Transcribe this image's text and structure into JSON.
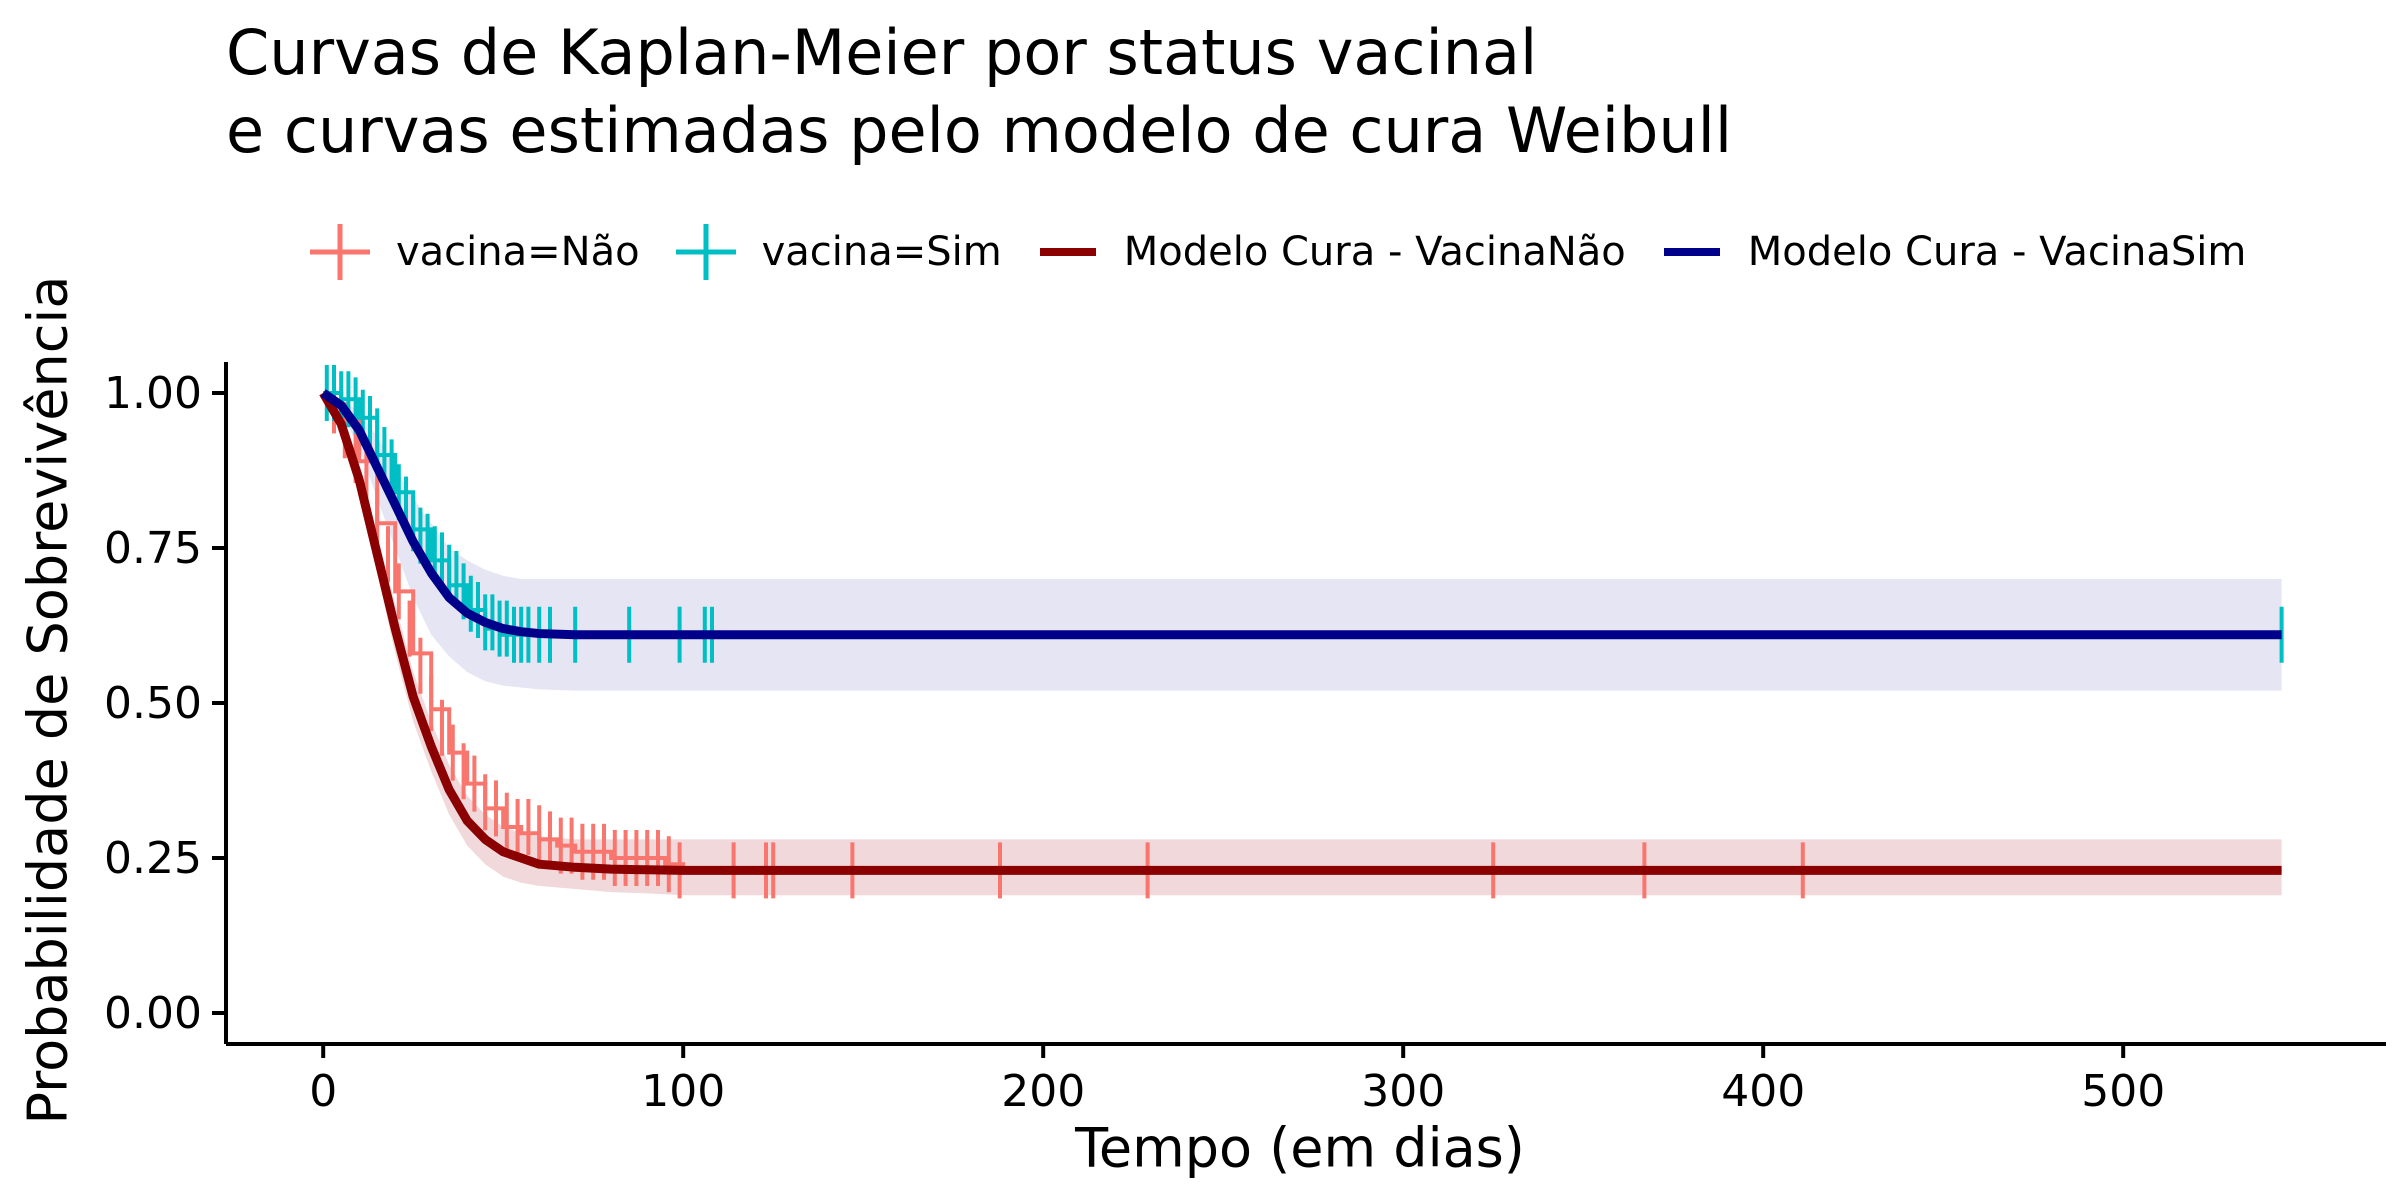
{
  "chart_data": {
    "type": "line",
    "title_lines": [
      "Curvas de Kaplan-Meier por status vacinal",
      "e curvas estimadas pelo modelo de cura Weibull"
    ],
    "xlabel": "Tempo (em dias)",
    "ylabel": "Probabilidade de Sobrevivência",
    "xlim": [
      -27,
      573
    ],
    "ylim": [
      -0.05,
      1.05
    ],
    "x_ticks": [
      0,
      100,
      200,
      300,
      400,
      500
    ],
    "y_ticks": [
      "0.00",
      "0.25",
      "0.50",
      "0.75",
      "1.00"
    ],
    "grid": false,
    "legend_position": "top",
    "legend": [
      {
        "label": "vacina=Não",
        "kind": "km",
        "color": "#F8766D"
      },
      {
        "label": "vacina=Sim",
        "kind": "km",
        "color": "#00BFC4"
      },
      {
        "label": "Modelo Cura - VacinaNão",
        "kind": "line",
        "color": "#8B0000"
      },
      {
        "label": "Modelo Cura - VacinaSim",
        "kind": "line",
        "color": "#00008B"
      }
    ],
    "series": [
      {
        "name": "vacina=Não",
        "kind": "km",
        "color": "#F8766D",
        "x": [
          0,
          5,
          10,
          15,
          20,
          25,
          30,
          35,
          40,
          45,
          50,
          55,
          60,
          65,
          70,
          75,
          80,
          85,
          90,
          95,
          100,
          544
        ],
        "y": [
          1.0,
          0.96,
          0.89,
          0.79,
          0.68,
          0.58,
          0.49,
          0.42,
          0.37,
          0.33,
          0.3,
          0.29,
          0.28,
          0.27,
          0.26,
          0.26,
          0.25,
          0.25,
          0.25,
          0.24,
          0.23,
          0.23
        ],
        "censor_x": [
          3,
          6,
          9,
          12,
          15,
          18,
          21,
          24,
          27,
          30,
          33,
          36,
          39,
          42,
          45,
          48,
          51,
          54,
          57,
          60,
          63,
          66,
          69,
          72,
          75,
          78,
          81,
          84,
          87,
          90,
          93,
          96,
          99,
          114,
          123,
          125,
          147,
          188,
          229,
          325,
          367,
          411
        ],
        "censor_y": [
          0.98,
          0.94,
          0.9,
          0.86,
          0.8,
          0.74,
          0.68,
          0.62,
          0.56,
          0.5,
          0.46,
          0.42,
          0.39,
          0.37,
          0.34,
          0.33,
          0.31,
          0.3,
          0.3,
          0.29,
          0.28,
          0.27,
          0.27,
          0.26,
          0.26,
          0.26,
          0.25,
          0.25,
          0.25,
          0.25,
          0.25,
          0.24,
          0.23,
          0.23,
          0.23,
          0.23,
          0.23,
          0.23,
          0.23,
          0.23,
          0.23,
          0.23
        ]
      },
      {
        "name": "vacina=Sim",
        "kind": "km",
        "color": "#00BFC4",
        "x": [
          0,
          5,
          10,
          15,
          20,
          25,
          30,
          35,
          40,
          45,
          50,
          55,
          60,
          70,
          544
        ],
        "y": [
          1.0,
          0.99,
          0.96,
          0.9,
          0.84,
          0.78,
          0.73,
          0.69,
          0.65,
          0.62,
          0.61,
          0.61,
          0.61,
          0.61,
          0.61
        ],
        "censor_x": [
          1,
          3,
          5,
          7,
          9,
          11,
          13,
          15,
          17,
          19,
          21,
          23,
          25,
          27,
          29,
          31,
          33,
          35,
          37,
          39,
          41,
          43,
          45,
          47,
          49,
          51,
          53,
          55,
          57,
          60,
          63,
          70,
          85,
          99,
          106,
          108,
          544
        ],
        "censor_y": [
          1.0,
          1.0,
          0.99,
          0.99,
          0.98,
          0.96,
          0.95,
          0.93,
          0.9,
          0.88,
          0.84,
          0.82,
          0.79,
          0.77,
          0.76,
          0.74,
          0.73,
          0.71,
          0.7,
          0.68,
          0.66,
          0.65,
          0.63,
          0.63,
          0.62,
          0.62,
          0.61,
          0.61,
          0.61,
          0.61,
          0.61,
          0.61,
          0.61,
          0.61,
          0.61,
          0.61,
          0.61
        ]
      },
      {
        "name": "Modelo Cura - VacinaNão",
        "kind": "model",
        "color": "#8B0000",
        "band_color": "#F0D8DB",
        "x": [
          0,
          5,
          10,
          15,
          20,
          25,
          30,
          35,
          40,
          45,
          50,
          55,
          60,
          70,
          80,
          90,
          100,
          150,
          200,
          300,
          400,
          544
        ],
        "y": [
          1.0,
          0.95,
          0.86,
          0.74,
          0.62,
          0.51,
          0.43,
          0.36,
          0.31,
          0.28,
          0.26,
          0.25,
          0.24,
          0.235,
          0.232,
          0.231,
          0.23,
          0.23,
          0.23,
          0.23,
          0.23,
          0.23
        ],
        "lower": [
          1.0,
          0.94,
          0.84,
          0.71,
          0.58,
          0.47,
          0.39,
          0.32,
          0.27,
          0.24,
          0.22,
          0.21,
          0.205,
          0.2,
          0.195,
          0.193,
          0.19,
          0.19,
          0.19,
          0.19,
          0.19,
          0.19
        ],
        "upper": [
          1.0,
          0.96,
          0.88,
          0.77,
          0.66,
          0.55,
          0.47,
          0.4,
          0.35,
          0.32,
          0.3,
          0.29,
          0.285,
          0.28,
          0.28,
          0.28,
          0.28,
          0.28,
          0.28,
          0.28,
          0.28,
          0.28
        ]
      },
      {
        "name": "Modelo Cura - VacinaSim",
        "kind": "model",
        "color": "#00008B",
        "band_color": "#E5E5F3",
        "x": [
          0,
          5,
          10,
          15,
          20,
          25,
          30,
          35,
          40,
          45,
          50,
          55,
          60,
          70,
          80,
          100,
          150,
          200,
          300,
          400,
          544
        ],
        "y": [
          1.0,
          0.98,
          0.94,
          0.88,
          0.82,
          0.76,
          0.71,
          0.67,
          0.645,
          0.63,
          0.62,
          0.615,
          0.612,
          0.61,
          0.61,
          0.61,
          0.61,
          0.61,
          0.61,
          0.61,
          0.61
        ],
        "lower": [
          1.0,
          0.97,
          0.91,
          0.83,
          0.75,
          0.67,
          0.61,
          0.575,
          0.55,
          0.535,
          0.528,
          0.525,
          0.522,
          0.52,
          0.52,
          0.52,
          0.52,
          0.52,
          0.52,
          0.52,
          0.52
        ],
        "upper": [
          1.0,
          0.99,
          0.97,
          0.93,
          0.88,
          0.83,
          0.79,
          0.75,
          0.73,
          0.715,
          0.705,
          0.7,
          0.7,
          0.7,
          0.7,
          0.7,
          0.7,
          0.7,
          0.7,
          0.7,
          0.7
        ]
      }
    ]
  }
}
